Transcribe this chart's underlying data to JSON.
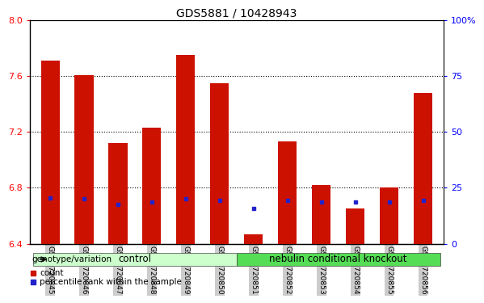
{
  "title": "GDS5881 / 10428943",
  "samples": [
    "GSM1720845",
    "GSM1720846",
    "GSM1720847",
    "GSM1720848",
    "GSM1720849",
    "GSM1720850",
    "GSM1720851",
    "GSM1720852",
    "GSM1720853",
    "GSM1720854",
    "GSM1720855",
    "GSM1720856"
  ],
  "count_values": [
    7.71,
    7.61,
    7.12,
    7.23,
    7.75,
    7.55,
    6.47,
    7.13,
    6.82,
    6.65,
    6.8,
    7.48
  ],
  "percentile_values": [
    6.73,
    6.72,
    6.68,
    6.7,
    6.72,
    6.71,
    6.65,
    6.71,
    6.7,
    6.7,
    6.7,
    6.71
  ],
  "ylim": [
    6.4,
    8.0
  ],
  "yticks": [
    6.4,
    6.8,
    7.2,
    7.6,
    8.0
  ],
  "right_yticks": [
    0,
    25,
    50,
    75,
    100
  ],
  "right_ylabels": [
    "0",
    "25",
    "50",
    "75",
    "100%"
  ],
  "grid_values": [
    6.8,
    7.2,
    7.6
  ],
  "bar_color": "#cc1100",
  "percentile_color": "#2222cc",
  "bar_width": 0.55,
  "n_control": 6,
  "n_knockout": 6,
  "control_label": "control",
  "knockout_label": "nebulin conditional knockout",
  "group_label": "genotype/variation",
  "legend_count": "count",
  "legend_percentile": "percentile rank within the sample",
  "control_bg": "#ccffcc",
  "knockout_bg": "#55dd55",
  "tick_bg": "#cccccc",
  "base_value": 6.4
}
